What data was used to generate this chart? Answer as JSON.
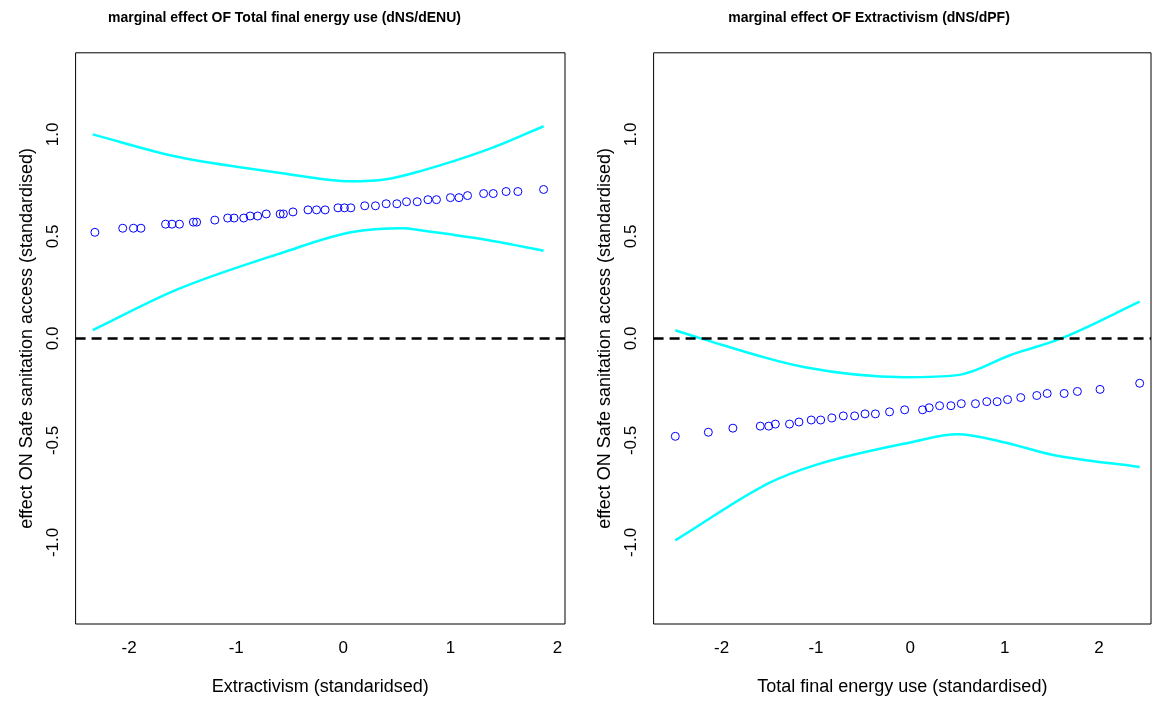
{
  "chart_data": [
    {
      "type": "scatter",
      "title": "marginal effect OF Total final energy use (dNS/dENU)",
      "xlabel": "Extractivism (standaridsed)",
      "ylabel": "effect ON Safe sanitation access (standardised)",
      "xlim": [
        -2.5,
        2.07
      ],
      "ylim": [
        -1.4,
        1.4
      ],
      "xticks": [
        -2,
        -1,
        0,
        1,
        2
      ],
      "yticks": [
        {
          "value": -1,
          "label": "-1.0"
        },
        {
          "value": -0.5,
          "label": "-0.5"
        },
        {
          "value": 0,
          "label": "0.0"
        },
        {
          "value": 0.5,
          "label": "0.5"
        },
        {
          "value": 1,
          "label": "1.0"
        }
      ],
      "ref_lines": [
        {
          "axis": "y",
          "value": 0,
          "color": "#000000",
          "line_style": "dashed"
        }
      ],
      "series": [
        {
          "marker": "circle",
          "color": "#0000ff",
          "x": [
            -2.32,
            -2.06,
            -1.96,
            -1.89,
            -1.66,
            -1.6,
            -1.53,
            -1.4,
            -1.37,
            -1.2,
            -1.08,
            -1.02,
            -0.93,
            -0.87,
            -0.8,
            -0.72,
            -0.59,
            -0.56,
            -0.47,
            -0.33,
            -0.25,
            -0.17,
            -0.05,
            0.01,
            0.07,
            0.2,
            0.3,
            0.4,
            0.5,
            0.59,
            0.69,
            0.79,
            0.87,
            1.0,
            1.08,
            1.16,
            1.31,
            1.4,
            1.52,
            1.63,
            1.87
          ],
          "values": [
            0.52,
            0.54,
            0.54,
            0.54,
            0.56,
            0.56,
            0.56,
            0.57,
            0.57,
            0.58,
            0.59,
            0.59,
            0.59,
            0.6,
            0.6,
            0.61,
            0.61,
            0.61,
            0.62,
            0.63,
            0.63,
            0.63,
            0.64,
            0.64,
            0.64,
            0.65,
            0.65,
            0.66,
            0.66,
            0.67,
            0.67,
            0.68,
            0.68,
            0.69,
            0.69,
            0.7,
            0.71,
            0.71,
            0.72,
            0.72,
            0.73
          ]
        },
        {
          "type": "line",
          "color": "#00ffff",
          "x": [
            -2.34,
            -1.55,
            -0.57,
            0.07,
            0.4,
            0.72,
            1.37,
            1.87
          ],
          "values": [
            1.0,
            0.89,
            0.81,
            0.77,
            0.78,
            0.82,
            0.93,
            1.04
          ]
        },
        {
          "type": "line",
          "color": "#00ffff",
          "x": [
            -2.34,
            -1.55,
            -0.57,
            0.07,
            0.56,
            0.72,
            1.37,
            1.87
          ],
          "values": [
            0.04,
            0.24,
            0.42,
            0.52,
            0.54,
            0.53,
            0.48,
            0.43
          ]
        }
      ]
    },
    {
      "type": "scatter",
      "title": "marginal effect OF Extractivism (dNS/dPF)",
      "xlabel": "Total final energy use (standardised)",
      "ylabel": "effect ON Safe sanitation access (standardised)",
      "xlim": [
        -2.72,
        2.55
      ],
      "ylim": [
        -1.4,
        1.4
      ],
      "xticks": [
        -2,
        -1,
        0,
        1,
        2
      ],
      "yticks": [
        {
          "value": -1,
          "label": "-1.0"
        },
        {
          "value": -0.5,
          "label": "-0.5"
        },
        {
          "value": 0,
          "label": "0.0"
        },
        {
          "value": 0.5,
          "label": "0.5"
        },
        {
          "value": 1,
          "label": "1.0"
        }
      ],
      "ref_lines": [
        {
          "axis": "y",
          "value": 0,
          "color": "#000000",
          "line_style": "dashed"
        }
      ],
      "series": [
        {
          "marker": "circle",
          "color": "#0000ff",
          "x": [
            -2.49,
            -2.14,
            -1.88,
            -1.59,
            -1.5,
            -1.43,
            -1.28,
            -1.18,
            -1.05,
            -0.95,
            -0.83,
            -0.71,
            -0.59,
            -0.48,
            -0.37,
            -0.22,
            -0.06,
            0.13,
            0.2,
            0.31,
            0.43,
            0.54,
            0.69,
            0.81,
            0.92,
            1.03,
            1.17,
            1.34,
            1.45,
            1.63,
            1.77,
            2.01,
            2.43
          ],
          "values": [
            -0.48,
            -0.46,
            -0.44,
            -0.43,
            -0.43,
            -0.42,
            -0.42,
            -0.41,
            -0.4,
            -0.4,
            -0.39,
            -0.38,
            -0.38,
            -0.37,
            -0.37,
            -0.36,
            -0.35,
            -0.35,
            -0.34,
            -0.33,
            -0.33,
            -0.32,
            -0.32,
            -0.31,
            -0.31,
            -0.3,
            -0.29,
            -0.28,
            -0.27,
            -0.27,
            -0.26,
            -0.25,
            -0.22
          ]
        },
        {
          "type": "line",
          "color": "#00ffff",
          "x": [
            -2.49,
            -2.22,
            -1.13,
            -0.06,
            0.5,
            1.07,
            1.6,
            2.43
          ],
          "values": [
            0.04,
            0.0,
            -0.14,
            -0.19,
            -0.18,
            -0.08,
            0.0,
            0.18
          ]
        },
        {
          "type": "line",
          "color": "#00ffff",
          "x": [
            -2.49,
            -1.5,
            -1.0,
            0.0,
            0.5,
            1.0,
            1.5,
            2.43
          ],
          "values": [
            -0.99,
            -0.71,
            -0.62,
            -0.51,
            -0.47,
            -0.51,
            -0.57,
            -0.63
          ]
        }
      ]
    }
  ]
}
